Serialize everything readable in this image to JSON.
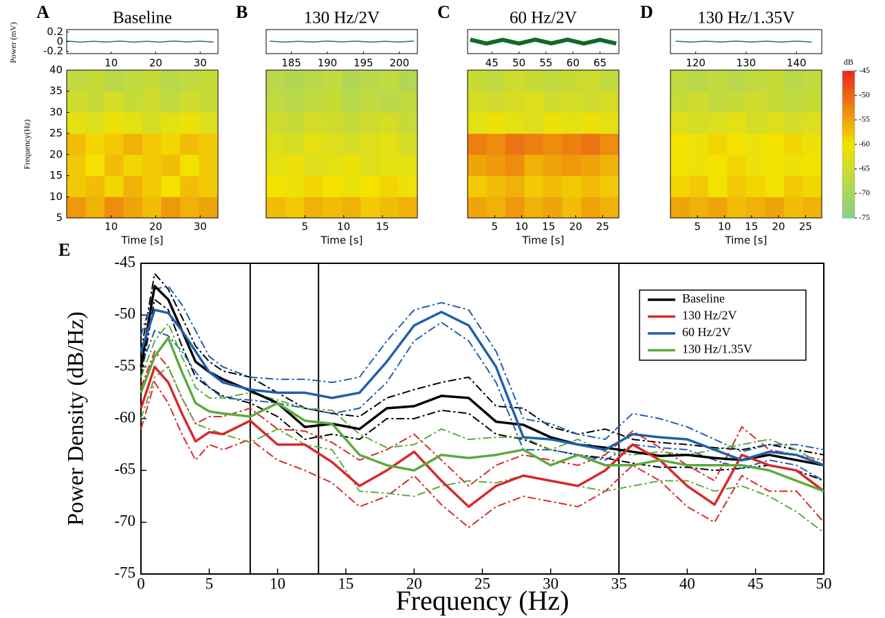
{
  "chart_data": [
    {
      "type": "spectrogram",
      "letter": "A",
      "title": "Baseline",
      "trace": {
        "ylabel": "Power (mV)",
        "x": [
          0,
          3,
          6,
          9,
          12,
          15,
          18,
          21,
          24,
          27,
          30,
          33
        ],
        "values": [
          0.01,
          -0.01,
          0.005,
          -0.008,
          0.012,
          -0.01,
          0.006,
          -0.012,
          0.01,
          -0.005,
          0.008,
          -0.01
        ],
        "color": "#1e7a3c",
        "xlim": [
          0,
          34
        ],
        "xticks": [
          10,
          20,
          30
        ],
        "ylim": [
          -0.25,
          0.25
        ],
        "yticks": [
          0.2,
          0,
          -0.2
        ]
      },
      "spectrogram": {
        "ylabel": "Frequency(Hz)",
        "xlabel": "Time [s]",
        "xlim": [
          0,
          34
        ],
        "xticks": [
          10,
          20,
          30
        ],
        "ylim": [
          5,
          40
        ],
        "yticks": [
          5,
          10,
          15,
          20,
          25,
          30,
          35,
          40
        ],
        "z": [
          [
            -54,
            -56,
            -53,
            -55,
            -57,
            -54,
            -56,
            -55
          ],
          [
            -58,
            -57,
            -59,
            -56,
            -58,
            -60,
            -57,
            -58
          ],
          [
            -58,
            -60,
            -57,
            -59,
            -58,
            -57,
            -60,
            -58
          ],
          [
            -57,
            -59,
            -58,
            -56,
            -58,
            -59,
            -57,
            -58
          ],
          [
            -62,
            -63,
            -61,
            -62,
            -64,
            -62,
            -61,
            -63
          ],
          [
            -65,
            -66,
            -64,
            -66,
            -65,
            -67,
            -65,
            -66
          ],
          [
            -67,
            -66,
            -68,
            -67,
            -66,
            -68,
            -67,
            -66
          ]
        ]
      }
    },
    {
      "type": "spectrogram",
      "letter": "B",
      "title": "130 Hz/2V",
      "trace": {
        "x": [
          182,
          184,
          186,
          188,
          190,
          192,
          194,
          196,
          198,
          200,
          202
        ],
        "values": [
          0.008,
          -0.01,
          0.006,
          -0.008,
          0.01,
          -0.006,
          0.008,
          -0.01,
          0.006,
          -0.008,
          0.01
        ],
        "color": "#1e7a3c",
        "xlim": [
          181.5,
          202.5
        ],
        "xticks": [
          185,
          190,
          195,
          200
        ],
        "ylim": [
          -0.25,
          0.25
        ]
      },
      "spectrogram": {
        "xlabel": "Time [s]",
        "xlim": [
          0,
          19.5
        ],
        "xticks": [
          5,
          10,
          15
        ],
        "ylim": [
          5,
          40
        ],
        "z": [
          [
            -57,
            -58,
            -56,
            -57,
            -56,
            -58,
            -57,
            -56
          ],
          [
            -60,
            -61,
            -59,
            -60,
            -61,
            -60,
            -59,
            -61
          ],
          [
            -62,
            -61,
            -63,
            -62,
            -61,
            -63,
            -62,
            -62
          ],
          [
            -63,
            -64,
            -62,
            -63,
            -64,
            -63,
            -62,
            -64
          ],
          [
            -65,
            -66,
            -64,
            -65,
            -66,
            -65,
            -64,
            -66
          ],
          [
            -67,
            -68,
            -67,
            -66,
            -68,
            -67,
            -68,
            -67
          ],
          [
            -68,
            -69,
            -68,
            -67,
            -69,
            -68,
            -67,
            -69
          ]
        ]
      }
    },
    {
      "type": "spectrogram",
      "letter": "C",
      "title": "60 Hz/2V",
      "trace": {
        "x": [
          41,
          44,
          47,
          50,
          53,
          56,
          59,
          62,
          65,
          68
        ],
        "values": [
          0.04,
          -0.04,
          0.035,
          -0.04,
          0.04,
          -0.035,
          0.04,
          -0.04,
          0.035,
          -0.04
        ],
        "color": "#0f6a2e",
        "xlim": [
          40.5,
          68.5
        ],
        "xticks": [
          45,
          50,
          55,
          60,
          65
        ],
        "ylim": [
          -0.25,
          0.25
        ]
      },
      "spectrogram": {
        "xlabel": "Time [s]",
        "xlim": [
          0,
          28
        ],
        "xticks": [
          5,
          10,
          15,
          20,
          25
        ],
        "ylim": [
          5,
          40
        ],
        "z": [
          [
            -55,
            -56,
            -54,
            -56,
            -55,
            -57,
            -55,
            -56
          ],
          [
            -58,
            -57,
            -56,
            -58,
            -57,
            -58,
            -57,
            -58
          ],
          [
            -55,
            -54,
            -53,
            -56,
            -55,
            -54,
            -55,
            -56
          ],
          [
            -52,
            -53,
            -51,
            -52,
            -53,
            -52,
            -51,
            -53
          ],
          [
            -62,
            -61,
            -62,
            -63,
            -61,
            -62,
            -61,
            -62
          ],
          [
            -64,
            -65,
            -64,
            -63,
            -65,
            -64,
            -65,
            -64
          ],
          [
            -66,
            -67,
            -65,
            -66,
            -67,
            -66,
            -65,
            -67
          ]
        ]
      }
    },
    {
      "type": "spectrogram",
      "letter": "D",
      "title": "130 Hz/1.35V",
      "trace": {
        "x": [
          116,
          119,
          122,
          125,
          128,
          131,
          134,
          137,
          140,
          143
        ],
        "values": [
          0.008,
          -0.01,
          0.008,
          -0.008,
          0.01,
          -0.008,
          0.008,
          -0.01,
          0.008,
          -0.008
        ],
        "color": "#1e7a3c",
        "xlim": [
          115,
          145
        ],
        "xticks": [
          120,
          130,
          140
        ],
        "ylim": [
          -0.25,
          0.25
        ]
      },
      "spectrogram": {
        "xlabel": "Time [s]",
        "xlim": [
          0,
          28
        ],
        "xticks": [
          5,
          10,
          15,
          20,
          25
        ],
        "ylim": [
          5,
          40
        ],
        "z": [
          [
            -55,
            -56,
            -55,
            -57,
            -56,
            -55,
            -57,
            -56
          ],
          [
            -59,
            -58,
            -60,
            -58,
            -59,
            -60,
            -58,
            -59
          ],
          [
            -60,
            -61,
            -60,
            -59,
            -61,
            -60,
            -61,
            -60
          ],
          [
            -60,
            -61,
            -59,
            -60,
            -61,
            -60,
            -59,
            -61
          ],
          [
            -63,
            -64,
            -63,
            -62,
            -64,
            -63,
            -64,
            -63
          ],
          [
            -66,
            -65,
            -67,
            -66,
            -65,
            -66,
            -67,
            -66
          ],
          [
            -67,
            -68,
            -67,
            -68,
            -67,
            -66,
            -68,
            -67
          ]
        ]
      }
    },
    {
      "type": "colorbar",
      "label": "dB",
      "ylim": [
        -75,
        -45
      ],
      "yticks": [
        -45,
        -50,
        -55,
        -60,
        -65,
        -70,
        -75
      ],
      "colors": [
        "#86d08a",
        "#f3e200",
        "#e8291f"
      ]
    },
    {
      "type": "line",
      "letter": "E",
      "xlabel": "Frequency (Hz)",
      "ylabel": "Power Density (dB/Hz)",
      "xlim": [
        0,
        50
      ],
      "xticks": [
        0,
        5,
        10,
        15,
        20,
        25,
        30,
        35,
        40,
        45,
        50
      ],
      "ylim": [
        -75,
        -45
      ],
      "yticks": [
        -75,
        -70,
        -65,
        -60,
        -55,
        -50,
        -45
      ],
      "vlines": [
        8,
        13,
        35
      ],
      "legend": "upper right",
      "x": [
        0,
        1,
        2,
        3,
        4,
        5,
        6,
        8,
        10,
        12,
        14,
        16,
        18,
        20,
        22,
        24,
        26,
        28,
        30,
        32,
        34,
        36,
        38,
        40,
        42,
        44,
        46,
        48,
        50
      ],
      "series": [
        {
          "name": "Baseline",
          "color": "#000000",
          "values": [
            -55,
            -47.2,
            -48.5,
            -51.5,
            -54.5,
            -55.5,
            -56.2,
            -57.3,
            -58.5,
            -60.8,
            -60.5,
            -61,
            -59,
            -58.8,
            -57.8,
            -58,
            -60.3,
            -60.6,
            -61.8,
            -62.5,
            -62.8,
            -63.2,
            -63.6,
            -63.5,
            -63.8,
            -64,
            -63.5,
            -64,
            -64.5
          ],
          "upper": [
            -53.5,
            -46,
            -47.5,
            -50.2,
            -53,
            -54.5,
            -55.4,
            -56,
            -57.5,
            -59,
            -59.5,
            -59.8,
            -58,
            -57.2,
            -56.5,
            -56,
            -58.8,
            -59,
            -60.8,
            -61.5,
            -61,
            -62,
            -62.3,
            -62.5,
            -62.8,
            -63,
            -62.5,
            -63,
            -63.5
          ],
          "lower": [
            -56,
            -48.5,
            -49.5,
            -53,
            -56,
            -57,
            -57.8,
            -58.5,
            -59.8,
            -62,
            -61.5,
            -62,
            -60,
            -60,
            -59.2,
            -59.5,
            -61.5,
            -62,
            -63,
            -63.5,
            -63.8,
            -64.3,
            -64.7,
            -64.7,
            -65,
            -64.8,
            -64.5,
            -65,
            -66
          ]
        },
        {
          "name": "130 Hz/2V",
          "color": "#d8282a",
          "values": [
            -59,
            -55,
            -56.5,
            -59.5,
            -62.2,
            -61.3,
            -61.5,
            -60.2,
            -62.5,
            -62.5,
            -64.2,
            -66.5,
            -65,
            -63.2,
            -66,
            -68.5,
            -66.5,
            -65.5,
            -66,
            -66.5,
            -65,
            -62.5,
            -64,
            -66.5,
            -68.3,
            -63.5,
            -64.5,
            -65,
            -67
          ],
          "upper": [
            -57,
            -53.5,
            -55,
            -58,
            -60.5,
            -59.8,
            -59.8,
            -59,
            -61,
            -61.2,
            -62.3,
            -64,
            -63,
            -61.5,
            -64,
            -66.5,
            -64.5,
            -63.5,
            -64,
            -64.5,
            -63.5,
            -61.2,
            -62.8,
            -64.5,
            -66,
            -60.8,
            -63,
            -63.5,
            -64
          ],
          "lower": [
            -61,
            -56.5,
            -58.5,
            -61.5,
            -64,
            -62.5,
            -63,
            -62,
            -64,
            -65,
            -66.2,
            -68.5,
            -67.5,
            -65.5,
            -68.3,
            -70.5,
            -68.5,
            -67.5,
            -68,
            -68.5,
            -67,
            -64.5,
            -66,
            -68.5,
            -70,
            -65.5,
            -67,
            -67,
            -70
          ]
        },
        {
          "name": "60 Hz/2V",
          "color": "#1f5fae",
          "values": [
            -53.5,
            -49.5,
            -49.8,
            -51.5,
            -53.5,
            -55.5,
            -56.5,
            -57.2,
            -57.5,
            -57.5,
            -58,
            -57.5,
            -54.5,
            -51,
            -49.7,
            -51,
            -55,
            -61.8,
            -62,
            -62.5,
            -63,
            -61.5,
            -61.8,
            -62,
            -63,
            -64,
            -63.2,
            -63.5,
            -64.5
          ],
          "upper": [
            -52,
            -47.5,
            -47.2,
            -49,
            -51.5,
            -54,
            -55,
            -56,
            -56.2,
            -56.2,
            -56.5,
            -56,
            -52.5,
            -49.5,
            -48.8,
            -49.5,
            -53.5,
            -60,
            -60.5,
            -61.5,
            -62,
            -59.5,
            -60,
            -60.8,
            -62,
            -63.2,
            -62.5,
            -62.5,
            -63
          ],
          "lower": [
            -55,
            -51.5,
            -52,
            -53.5,
            -55.5,
            -57,
            -58,
            -58.2,
            -58.5,
            -59,
            -59.5,
            -59,
            -56.5,
            -52.5,
            -50.7,
            -52.5,
            -56.5,
            -63,
            -63,
            -63.5,
            -64,
            -62.5,
            -62.8,
            -63,
            -64,
            -64.8,
            -64,
            -64.5,
            -66
          ]
        },
        {
          "name": "130 Hz/1.35V",
          "color": "#5aab3c",
          "values": [
            -57.5,
            -54,
            -52.2,
            -55.5,
            -58.5,
            -59.3,
            -59.5,
            -59.8,
            -58.5,
            -60.2,
            -60.5,
            -63.5,
            -64.5,
            -65,
            -63.5,
            -63.8,
            -63.5,
            -63,
            -64.5,
            -63.5,
            -64.5,
            -64.5,
            -64,
            -64.5,
            -64.5,
            -64.5,
            -65,
            -66,
            -67
          ],
          "upper": [
            -56,
            -52.5,
            -50.8,
            -54,
            -57,
            -58,
            -58,
            -57.5,
            -58.2,
            -59,
            -59.2,
            -61.5,
            -62.8,
            -62.5,
            -61,
            -62,
            -61.8,
            -61.8,
            -63,
            -62,
            -63.2,
            -63.5,
            -63.2,
            -63.5,
            -63,
            -62.5,
            -62,
            -63,
            -64.5
          ],
          "lower": [
            -60,
            -56,
            -55,
            -58,
            -60.5,
            -61,
            -61.5,
            -62.3,
            -61,
            -62.5,
            -63,
            -67,
            -67.2,
            -67.5,
            -66.5,
            -66,
            -66.2,
            -65.5,
            -66,
            -66.5,
            -67,
            -66.5,
            -66,
            -66,
            -67,
            -66.5,
            -67.5,
            -69,
            -71
          ]
        }
      ]
    }
  ]
}
